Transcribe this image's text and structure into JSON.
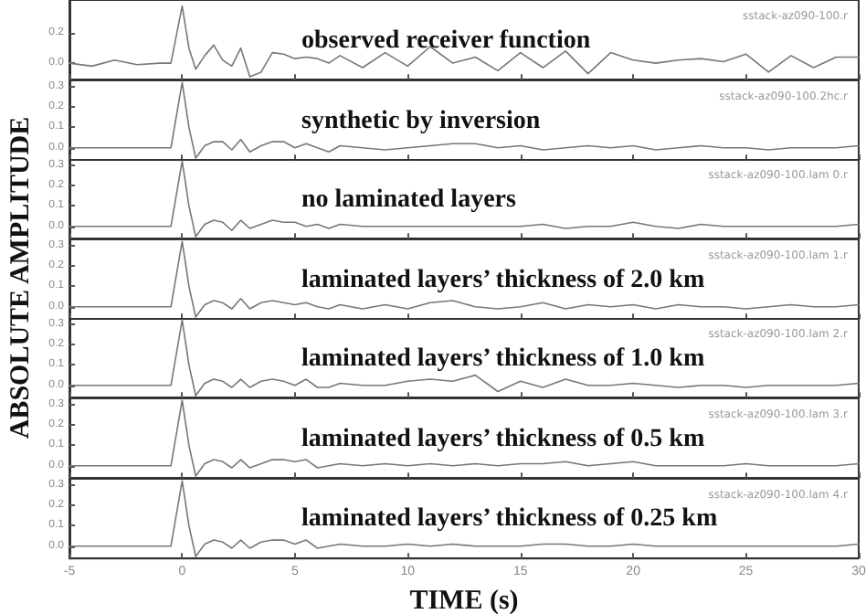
{
  "chart_data": [
    {
      "type": "line",
      "title": "observed receiver function",
      "annotations": [
        "sstack-az090-100.r"
      ],
      "ylabel": "ABSOLUTE AMPLITUDE",
      "color": "#777777",
      "tick_labels": "y",
      "xlim": [
        -5,
        30
      ],
      "xticks": [
        -5,
        0,
        5,
        10,
        15,
        20,
        25,
        30
      ],
      "ylim": [
        -0.11,
        0.42
      ],
      "yticks": [
        {
          "value": 0,
          "label": "0.0"
        },
        {
          "value": 0.2,
          "label": "0.2"
        }
      ],
      "x": [
        -5,
        -4,
        -3,
        -2,
        -1,
        -0.5,
        0,
        0.3,
        0.6,
        1,
        1.4,
        1.8,
        2.2,
        2.6,
        3,
        3.5,
        4,
        4.5,
        5,
        5.5,
        6,
        6.5,
        7,
        8,
        9,
        10,
        11,
        12,
        13,
        14,
        15,
        16,
        17,
        18,
        19,
        20,
        21,
        22,
        23,
        24,
        25,
        26,
        27,
        28,
        29,
        30
      ],
      "values": [
        0.0,
        -0.02,
        0.02,
        -0.01,
        0.0,
        0.0,
        0.38,
        0.1,
        -0.04,
        0.05,
        0.12,
        0.02,
        -0.02,
        0.1,
        -0.09,
        -0.06,
        0.07,
        0.06,
        0.03,
        0.04,
        0.03,
        0.0,
        0.05,
        -0.03,
        0.07,
        -0.02,
        0.11,
        0.0,
        0.04,
        -0.05,
        0.07,
        -0.03,
        0.08,
        -0.07,
        0.07,
        0.02,
        0.0,
        0.02,
        0.03,
        0.01,
        0.06,
        -0.06,
        0.05,
        -0.03,
        0.04,
        0.04
      ]
    },
    {
      "type": "line",
      "title": "synthetic by inversion",
      "annotations": [
        "sstack-az090-100.2hc.r"
      ],
      "color": "#777777",
      "tick_labels": "y",
      "xlim": [
        -5,
        30
      ],
      "xticks": [
        -5,
        0,
        5,
        10,
        15,
        20,
        25,
        30
      ],
      "ylim": [
        -0.06,
        0.33
      ],
      "yticks": [
        {
          "value": 0,
          "label": "0.0"
        },
        {
          "value": 0.1,
          "label": "0.1"
        },
        {
          "value": 0.2,
          "label": "0.2"
        },
        {
          "value": 0.3,
          "label": "0.3"
        }
      ],
      "x": [
        -5,
        -4,
        -3,
        -2,
        -1,
        -0.5,
        0,
        0.3,
        0.6,
        1,
        1.4,
        1.8,
        2.2,
        2.6,
        3,
        3.5,
        4,
        4.5,
        5,
        5.5,
        6,
        6.5,
        7,
        8,
        9,
        10,
        11,
        12,
        13,
        14,
        15,
        16,
        17,
        18,
        19,
        20,
        21,
        22,
        23,
        24,
        25,
        26,
        27,
        28,
        29,
        30
      ],
      "values": [
        0.0,
        0.0,
        0.0,
        0.0,
        0.0,
        0.0,
        0.32,
        0.1,
        -0.05,
        0.01,
        0.03,
        0.03,
        -0.01,
        0.04,
        -0.02,
        0.01,
        0.03,
        0.03,
        0.0,
        0.02,
        0.0,
        -0.02,
        0.01,
        0.0,
        -0.01,
        0.0,
        0.01,
        0.02,
        0.02,
        0.0,
        0.01,
        -0.01,
        0.0,
        0.01,
        0.0,
        0.01,
        -0.01,
        0.0,
        0.01,
        0.0,
        0.0,
        -0.01,
        0.0,
        0.0,
        0.0,
        0.01
      ]
    },
    {
      "type": "line",
      "title": "no laminated layers",
      "annotations": [
        "sstack-az090-100.lam 0.r"
      ],
      "color": "#777777",
      "tick_labels": "y",
      "xlim": [
        -5,
        30
      ],
      "xticks": [
        -5,
        0,
        5,
        10,
        15,
        20,
        25,
        30
      ],
      "ylim": [
        -0.06,
        0.33
      ],
      "yticks": [
        {
          "value": 0,
          "label": "0.0"
        },
        {
          "value": 0.1,
          "label": "0.1"
        },
        {
          "value": 0.2,
          "label": "0.2"
        },
        {
          "value": 0.3,
          "label": "0.3"
        }
      ],
      "x": [
        -5,
        -4,
        -3,
        -2,
        -1,
        -0.5,
        0,
        0.3,
        0.6,
        1,
        1.4,
        1.8,
        2.2,
        2.6,
        3,
        3.5,
        4,
        4.5,
        5,
        5.5,
        6,
        6.5,
        7,
        8,
        9,
        10,
        11,
        12,
        13,
        14,
        15,
        16,
        17,
        18,
        19,
        20,
        21,
        22,
        23,
        24,
        25,
        26,
        27,
        28,
        29,
        30
      ],
      "values": [
        0.0,
        0.0,
        0.0,
        0.0,
        0.0,
        0.0,
        0.32,
        0.1,
        -0.05,
        0.01,
        0.03,
        0.02,
        -0.02,
        0.03,
        -0.01,
        0.01,
        0.03,
        0.02,
        0.02,
        0.0,
        0.01,
        -0.01,
        0.01,
        0.0,
        0.0,
        0.0,
        0.0,
        0.0,
        0.0,
        0.0,
        0.0,
        0.01,
        -0.01,
        0.0,
        0.0,
        0.02,
        0.0,
        -0.01,
        0.01,
        0.0,
        0.0,
        0.0,
        0.0,
        0.0,
        0.0,
        0.01
      ]
    },
    {
      "type": "line",
      "title": "laminated layers’ thickness of 2.0 km",
      "annotations": [
        "sstack-az090-100.lam 1.r"
      ],
      "color": "#777777",
      "tick_labels": "y",
      "xlim": [
        -5,
        30
      ],
      "xticks": [
        -5,
        0,
        5,
        10,
        15,
        20,
        25,
        30
      ],
      "ylim": [
        -0.06,
        0.33
      ],
      "yticks": [
        {
          "value": 0,
          "label": "0.0"
        },
        {
          "value": 0.1,
          "label": "0.1"
        },
        {
          "value": 0.2,
          "label": "0.2"
        },
        {
          "value": 0.3,
          "label": "0.3"
        }
      ],
      "x": [
        -5,
        -4,
        -3,
        -2,
        -1,
        -0.5,
        0,
        0.3,
        0.6,
        1,
        1.4,
        1.8,
        2.2,
        2.6,
        3,
        3.5,
        4,
        4.5,
        5,
        5.5,
        6,
        6.5,
        7,
        8,
        9,
        10,
        11,
        12,
        13,
        14,
        15,
        16,
        17,
        18,
        19,
        20,
        21,
        22,
        23,
        24,
        25,
        26,
        27,
        28,
        29,
        30
      ],
      "values": [
        0.0,
        0.0,
        0.0,
        0.0,
        0.0,
        0.0,
        0.32,
        0.1,
        -0.05,
        0.01,
        0.03,
        0.02,
        -0.01,
        0.04,
        -0.01,
        0.02,
        0.03,
        0.02,
        0.01,
        0.02,
        0.0,
        -0.01,
        0.01,
        -0.01,
        0.01,
        -0.01,
        0.02,
        0.03,
        0.0,
        -0.01,
        0.0,
        0.02,
        -0.01,
        0.01,
        0.0,
        0.01,
        -0.01,
        0.01,
        0.0,
        0.0,
        -0.01,
        0.0,
        0.01,
        0.0,
        0.0,
        0.01
      ]
    },
    {
      "type": "line",
      "title": "laminated layers’ thickness of 1.0 km",
      "annotations": [
        "sstack-az090-100.lam 2.r"
      ],
      "color": "#777777",
      "tick_labels": "y",
      "xlim": [
        -5,
        30
      ],
      "xticks": [
        -5,
        0,
        5,
        10,
        15,
        20,
        25,
        30
      ],
      "ylim": [
        -0.06,
        0.33
      ],
      "yticks": [
        {
          "value": 0,
          "label": "0.0"
        },
        {
          "value": 0.1,
          "label": "0.1"
        },
        {
          "value": 0.2,
          "label": "0.2"
        },
        {
          "value": 0.3,
          "label": "0.3"
        }
      ],
      "x": [
        -5,
        -4,
        -3,
        -2,
        -1,
        -0.5,
        0,
        0.3,
        0.6,
        1,
        1.4,
        1.8,
        2.2,
        2.6,
        3,
        3.5,
        4,
        4.5,
        5,
        5.5,
        6,
        6.5,
        7,
        8,
        9,
        10,
        11,
        12,
        13,
        14,
        15,
        16,
        17,
        18,
        19,
        20,
        21,
        22,
        23,
        24,
        25,
        26,
        27,
        28,
        29,
        30
      ],
      "values": [
        0.0,
        0.0,
        0.0,
        0.0,
        0.0,
        0.0,
        0.32,
        0.1,
        -0.05,
        0.01,
        0.03,
        0.02,
        -0.01,
        0.03,
        -0.01,
        0.02,
        0.03,
        0.02,
        0.0,
        0.03,
        -0.01,
        -0.01,
        0.01,
        0.0,
        0.0,
        0.02,
        0.03,
        0.02,
        0.05,
        -0.03,
        0.02,
        -0.01,
        0.03,
        0.0,
        0.0,
        0.01,
        0.0,
        -0.01,
        0.0,
        0.0,
        -0.01,
        0.0,
        0.0,
        0.0,
        0.0,
        0.01
      ]
    },
    {
      "type": "line",
      "title": "laminated layers’ thickness of 0.5 km",
      "annotations": [
        "sstack-az090-100.lam 3.r"
      ],
      "color": "#777777",
      "tick_labels": "y",
      "xlim": [
        -5,
        30
      ],
      "xticks": [
        -5,
        0,
        5,
        10,
        15,
        20,
        25,
        30
      ],
      "ylim": [
        -0.06,
        0.33
      ],
      "yticks": [
        {
          "value": 0,
          "label": "0.0"
        },
        {
          "value": 0.1,
          "label": "0.1"
        },
        {
          "value": 0.2,
          "label": "0.2"
        },
        {
          "value": 0.3,
          "label": "0.3"
        }
      ],
      "x": [
        -5,
        -4,
        -3,
        -2,
        -1,
        -0.5,
        0,
        0.3,
        0.6,
        1,
        1.4,
        1.8,
        2.2,
        2.6,
        3,
        3.5,
        4,
        4.5,
        5,
        5.5,
        6,
        6.5,
        7,
        8,
        9,
        10,
        11,
        12,
        13,
        14,
        15,
        16,
        17,
        18,
        19,
        20,
        21,
        22,
        23,
        24,
        25,
        26,
        27,
        28,
        29,
        30
      ],
      "values": [
        0.0,
        0.0,
        0.0,
        0.0,
        0.0,
        0.0,
        0.32,
        0.1,
        -0.05,
        0.01,
        0.03,
        0.02,
        -0.01,
        0.03,
        -0.01,
        0.01,
        0.03,
        0.03,
        0.02,
        0.03,
        -0.01,
        0.0,
        0.01,
        0.0,
        0.01,
        0.0,
        0.01,
        0.0,
        0.01,
        0.0,
        0.01,
        0.01,
        0.02,
        0.0,
        0.01,
        0.02,
        0.0,
        0.0,
        0.0,
        0.0,
        0.01,
        0.0,
        0.0,
        0.0,
        0.0,
        0.01
      ]
    },
    {
      "type": "line",
      "title": "laminated layers’ thickness of 0.25 km",
      "annotations": [
        "sstack-az090-100.lam 4.r"
      ],
      "xlabel": "TIME (s)",
      "color": "#777777",
      "xlim": [
        -5,
        30
      ],
      "xticks": [
        -5,
        0,
        5,
        10,
        15,
        20,
        25,
        30
      ],
      "ylim": [
        -0.06,
        0.33
      ],
      "yticks": [
        {
          "value": 0,
          "label": "0.0"
        },
        {
          "value": 0.1,
          "label": "0.1"
        },
        {
          "value": 0.2,
          "label": "0.2"
        },
        {
          "value": 0.3,
          "label": "0.3"
        }
      ],
      "x": [
        -5,
        -4,
        -3,
        -2,
        -1,
        -0.5,
        0,
        0.3,
        0.6,
        1,
        1.4,
        1.8,
        2.2,
        2.6,
        3,
        3.5,
        4,
        4.5,
        5,
        5.5,
        6,
        6.5,
        7,
        8,
        9,
        10,
        11,
        12,
        13,
        14,
        15,
        16,
        17,
        18,
        19,
        20,
        21,
        22,
        23,
        24,
        25,
        26,
        27,
        28,
        29,
        30
      ],
      "values": [
        0.0,
        0.0,
        0.0,
        0.0,
        0.0,
        0.0,
        0.32,
        0.1,
        -0.05,
        0.01,
        0.03,
        0.02,
        -0.01,
        0.03,
        -0.01,
        0.02,
        0.03,
        0.03,
        0.01,
        0.03,
        -0.01,
        0.0,
        0.01,
        0.0,
        0.0,
        0.01,
        0.0,
        0.01,
        0.0,
        0.0,
        0.0,
        0.01,
        0.01,
        0.0,
        0.0,
        0.01,
        0.0,
        0.0,
        0.0,
        0.0,
        0.0,
        0.0,
        0.0,
        0.0,
        0.0,
        0.01
      ]
    }
  ]
}
